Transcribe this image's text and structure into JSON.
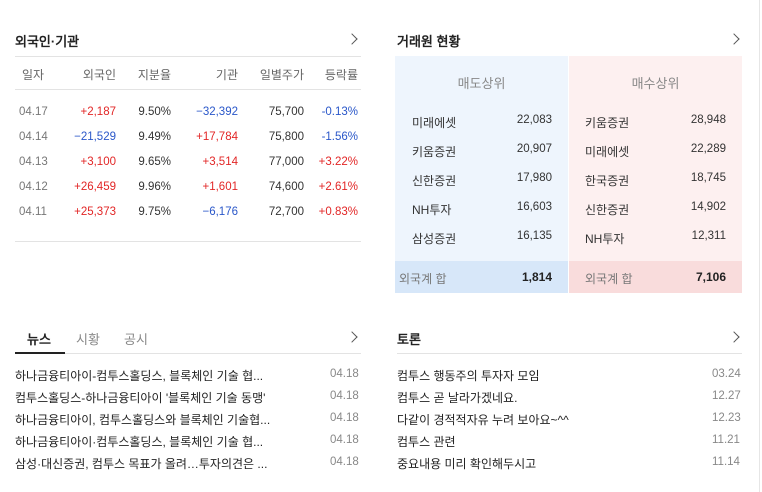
{
  "foreign": {
    "title": "외국인·기관",
    "headers": [
      "일자",
      "외국인",
      "지분율",
      "기관",
      "일별주가",
      "등락률"
    ],
    "rows": [
      {
        "date": "04.17",
        "foreign": "+2,187",
        "foreign_dir": "up",
        "share": "9.50%",
        "inst": "−32,392",
        "inst_dir": "down",
        "price": "75,700",
        "rate": "-0.13%",
        "rate_dir": "down"
      },
      {
        "date": "04.14",
        "foreign": "−21,529",
        "foreign_dir": "down",
        "share": "9.49%",
        "inst": "+17,784",
        "inst_dir": "up",
        "price": "75,800",
        "rate": "-1.56%",
        "rate_dir": "down"
      },
      {
        "date": "04.13",
        "foreign": "+3,100",
        "foreign_dir": "up",
        "share": "9.65%",
        "inst": "+3,514",
        "inst_dir": "up",
        "price": "77,000",
        "rate": "+3.22%",
        "rate_dir": "up"
      },
      {
        "date": "04.12",
        "foreign": "+26,459",
        "foreign_dir": "up",
        "share": "9.96%",
        "inst": "+1,601",
        "inst_dir": "up",
        "price": "74,600",
        "rate": "+2.61%",
        "rate_dir": "up"
      },
      {
        "date": "04.11",
        "foreign": "+25,373",
        "foreign_dir": "up",
        "share": "9.75%",
        "inst": "−6,176",
        "inst_dir": "down",
        "price": "72,700",
        "rate": "+0.83%",
        "rate_dir": "up"
      }
    ]
  },
  "broker": {
    "title": "거래원 현황",
    "sell_title": "매도상위",
    "buy_title": "매수상위",
    "sell": [
      {
        "name": "미래에셋",
        "value": "22,083"
      },
      {
        "name": "키움증권",
        "value": "20,907"
      },
      {
        "name": "신한증권",
        "value": "17,980"
      },
      {
        "name": "NH투자",
        "value": "16,603"
      },
      {
        "name": "삼성증권",
        "value": "16,135"
      }
    ],
    "buy": [
      {
        "name": "키움증권",
        "value": "28,948"
      },
      {
        "name": "미래에셋",
        "value": "22,289"
      },
      {
        "name": "한국증권",
        "value": "18,745"
      },
      {
        "name": "신한증권",
        "value": "14,902"
      },
      {
        "name": "NH투자",
        "value": "12,311"
      }
    ],
    "sell_total_label": "외국계 합",
    "sell_total": "1,814",
    "buy_total_label": "외국계 합",
    "buy_total": "7,106"
  },
  "news": {
    "tabs": [
      "뉴스",
      "시황",
      "공시"
    ],
    "items": [
      {
        "title": "하나금융티아이-컴투스홀딩스, 블록체인 기술 협...",
        "date": "04.18"
      },
      {
        "title": "컴투스홀딩스-하나금융티아이 '블록체인 기술 동맹'",
        "date": "04.18"
      },
      {
        "title": "하나금융티아이, 컴투스홀딩스와 블록체인 기술협...",
        "date": "04.18"
      },
      {
        "title": "하나금융티아이·컴투스홀딩스, 블록체인 기술 협...",
        "date": "04.18"
      },
      {
        "title": "삼성·대신증권, 컴투스 목표가 올려…투자의견은 ...",
        "date": "04.18"
      }
    ]
  },
  "discussion": {
    "title": "토론",
    "items": [
      {
        "title": "컴투스 행동주의 투자자 모임",
        "date": "03.24"
      },
      {
        "title": "컴투스 곧 날라가겠네요.",
        "date": "12.27"
      },
      {
        "title": "다같이 경적적자유 누려 보아요~^^",
        "date": "12.23"
      },
      {
        "title": "컴투스 관련",
        "date": "11.21"
      },
      {
        "title": "중요내용 미리 확인해두시고",
        "date": "11.14"
      }
    ]
  },
  "colors": {
    "up": "#e22626",
    "down": "#2a57c9"
  }
}
